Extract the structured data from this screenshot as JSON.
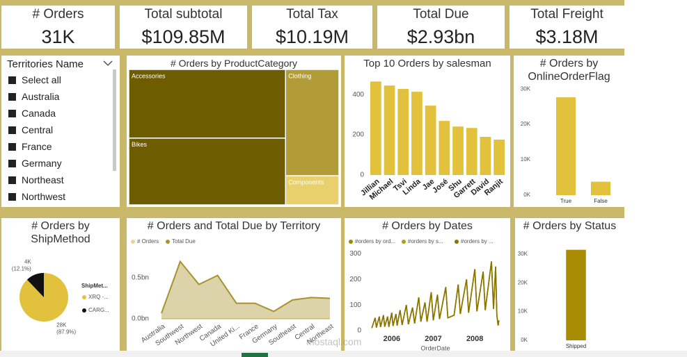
{
  "cards": [
    {
      "label": "# Orders",
      "value": "31K"
    },
    {
      "label": "Total subtotal",
      "value": "$109.85M"
    },
    {
      "label": "Total Tax",
      "value": "$10.19M"
    },
    {
      "label": "Total Due",
      "value": "$2.93bn"
    },
    {
      "label": "Total Freight",
      "value": "$3.18M"
    }
  ],
  "slicer": {
    "title": "Territories Name",
    "items": [
      "Select all",
      "Australia",
      "Canada",
      "Central",
      "France",
      "Germany",
      "Northeast",
      "Northwest"
    ]
  },
  "watermark": "mostaql.com",
  "chart_data": [
    {
      "type": "treemap",
      "title": "# Orders by ProductCategory",
      "categories": [
        "Accessories",
        "Bikes",
        "Clothing",
        "Components"
      ],
      "values": [
        36000,
        35000,
        19000,
        5200
      ],
      "colors": [
        "#6e5c00",
        "#6e5c00",
        "#b29c38",
        "#e8d06c"
      ]
    },
    {
      "type": "bar",
      "title": "Top 10 Orders by salesman",
      "categories": [
        "Jillian",
        "Michael",
        "Tsvi",
        "Linda",
        "Jae",
        "José",
        "Shu",
        "Garrett",
        "David",
        "Ranjit"
      ],
      "values": [
        465,
        445,
        428,
        414,
        345,
        269,
        241,
        234,
        190,
        176
      ],
      "color": "#e2c23c",
      "ylim": [
        0,
        480
      ],
      "yticks": [
        0,
        200,
        400
      ]
    },
    {
      "type": "bar",
      "title": "# Orders by OnlineOrderFlag",
      "categories": [
        "True",
        "False"
      ],
      "values": [
        27659,
        3806
      ],
      "color": "#e2c23c",
      "ylim": [
        0,
        32000
      ],
      "yticks": [
        {
          "value": 0,
          "label": "0K"
        },
        {
          "value": 10000,
          "label": "10K"
        },
        {
          "value": 20000,
          "label": "20K"
        },
        {
          "value": 30000,
          "label": "30K"
        }
      ]
    },
    {
      "type": "pie",
      "title": "# Orders by ShipMethod",
      "legend_title": "ShipMet...",
      "categories": [
        "XRQ -...",
        "CARG..."
      ],
      "values": [
        87.9,
        12.1
      ],
      "value_labels": [
        "(87.9%)",
        "(12.1%)"
      ],
      "count_labels": [
        "28K",
        "4K"
      ],
      "colors": [
        "#e2c23c",
        "#111111"
      ]
    },
    {
      "type": "area",
      "title": "# Orders and Total Due by Territory",
      "categories": [
        "Australia",
        "Southwest",
        "Northwest",
        "Canada",
        "United Ki...",
        "France",
        "Germany",
        "Southeast",
        "Central",
        "Northeast"
      ],
      "series": [
        {
          "name": "# Orders",
          "color": "#e8d49a",
          "values": [
            6843,
            6224,
            4594,
            4067,
            3219,
            2672,
            2623,
            486,
            385,
            352
          ]
        },
        {
          "name": "Total Due",
          "color": "#a8922c",
          "values": [
            68000000,
            700000000,
            420000000,
            530000000,
            190000000,
            190000000,
            90000000,
            230000000,
            260000000,
            250000000
          ]
        }
      ],
      "ylim": [
        0,
        840000000
      ],
      "yticks": [
        {
          "value": 0,
          "label": "0.0bn"
        },
        {
          "value": 500000000,
          "label": "0.5bn"
        }
      ]
    },
    {
      "type": "line",
      "title": "# Orders by Dates",
      "x_label": "OrderDate",
      "x": [
        2005.52,
        2005.6,
        2005.63,
        2005.7,
        2005.73,
        2005.8,
        2005.83,
        2005.9,
        2005.93,
        2006.0,
        2006.03,
        2006.1,
        2006.13,
        2006.2,
        2006.25,
        2006.35,
        2006.4,
        2006.5,
        2006.55,
        2006.65,
        2006.7,
        2006.8,
        2006.85,
        2006.95,
        2007.0,
        2007.1,
        2007.15,
        2007.3,
        2007.35,
        2007.5,
        2007.6,
        2007.65,
        2007.8,
        2007.85,
        2008.0,
        2008.05,
        2008.2,
        2008.25,
        2008.4,
        2008.45,
        2008.5,
        2008.53,
        2008.56,
        2008.58
      ],
      "series": [
        {
          "name": "#orders by ord...",
          "color": "#a08800",
          "values": [
            10,
            50,
            12,
            55,
            14,
            60,
            15,
            55,
            15,
            70,
            18,
            65,
            20,
            80,
            22,
            100,
            25,
            90,
            28,
            130,
            35,
            110,
            35,
            150,
            40,
            140,
            45,
            170,
            50,
            60,
            180,
            65,
            200,
            70,
            240,
            75,
            230,
            80,
            270,
            85,
            250,
            60,
            20,
            40
          ]
        },
        {
          "name": "#orders by s...",
          "color": "#b89c10",
          "values": [
            10,
            50,
            12,
            55,
            14,
            60,
            15,
            55,
            15,
            70,
            18,
            65,
            20,
            80,
            22,
            100,
            25,
            90,
            28,
            130,
            35,
            110,
            35,
            150,
            40,
            140,
            45,
            170,
            50,
            60,
            180,
            65,
            200,
            70,
            240,
            75,
            230,
            80,
            270,
            85,
            250,
            60,
            20,
            40
          ]
        },
        {
          "name": "#orders by ...",
          "color": "#8a7400",
          "values": [
            10,
            50,
            12,
            55,
            14,
            60,
            15,
            55,
            15,
            70,
            18,
            65,
            20,
            80,
            22,
            100,
            25,
            90,
            28,
            130,
            35,
            110,
            35,
            150,
            40,
            140,
            45,
            170,
            50,
            60,
            180,
            65,
            200,
            70,
            240,
            75,
            230,
            80,
            270,
            85,
            250,
            60,
            20,
            40
          ]
        }
      ],
      "xlim": [
        2005.5,
        2008.6
      ],
      "xticks": [
        2006,
        2007,
        2008
      ],
      "ylim": [
        0,
        320
      ],
      "yticks": [
        0,
        100,
        200,
        300
      ]
    },
    {
      "type": "bar",
      "title": "# Orders by Status",
      "categories": [
        "Shipped"
      ],
      "values": [
        31465
      ],
      "color": "#a88b00",
      "ylim": [
        0,
        35000
      ],
      "yticks": [
        {
          "value": 0,
          "label": "0K"
        },
        {
          "value": 10000,
          "label": "10K"
        },
        {
          "value": 20000,
          "label": "20K"
        },
        {
          "value": 30000,
          "label": "30K"
        }
      ]
    }
  ]
}
